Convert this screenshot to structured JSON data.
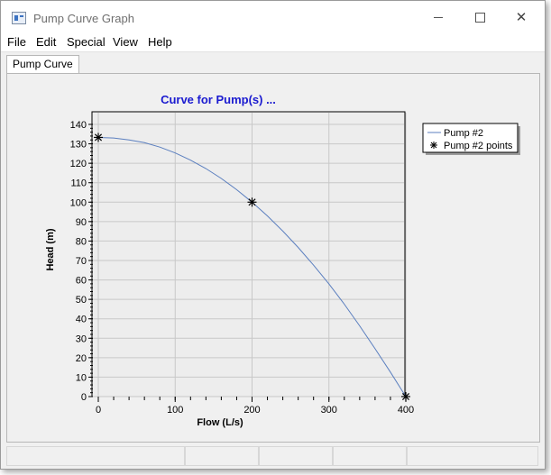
{
  "window": {
    "title": "Pump Curve Graph"
  },
  "menu": {
    "items": [
      "File",
      "Edit",
      "Special",
      "View",
      "Help"
    ]
  },
  "tabs": [
    {
      "label": "Pump Curve"
    }
  ],
  "chart_data": {
    "type": "line",
    "title": "Curve for Pump(s) ...",
    "xlabel": "Flow (L/s)",
    "ylabel": "Head (m)",
    "xlim": [
      0,
      400
    ],
    "ylim": [
      0,
      140
    ],
    "xticks": [
      0,
      100,
      200,
      300,
      400
    ],
    "yticks": [
      0,
      10,
      20,
      30,
      40,
      50,
      60,
      70,
      80,
      90,
      100,
      110,
      120,
      130,
      140
    ],
    "grid": true,
    "legend_position": "right",
    "series": [
      {
        "name": "Pump #2",
        "kind": "line",
        "color": "#5b7fbf",
        "x": [
          0,
          20,
          40,
          60,
          80,
          100,
          120,
          140,
          160,
          180,
          200,
          220,
          240,
          260,
          280,
          300,
          320,
          340,
          360,
          380,
          400
        ],
        "y": [
          133.3,
          133,
          132,
          130.6,
          128.3,
          125.3,
          121.6,
          117.3,
          112.2,
          106.4,
          100,
          92.9,
          85.1,
          76.7,
          67.6,
          57.9,
          47.5,
          36.4,
          24.6,
          12.6,
          0
        ]
      },
      {
        "name": "Pump #2 points",
        "kind": "points",
        "color": "#000000",
        "x": [
          0,
          200,
          400
        ],
        "y": [
          133.3,
          100,
          0
        ]
      }
    ]
  }
}
